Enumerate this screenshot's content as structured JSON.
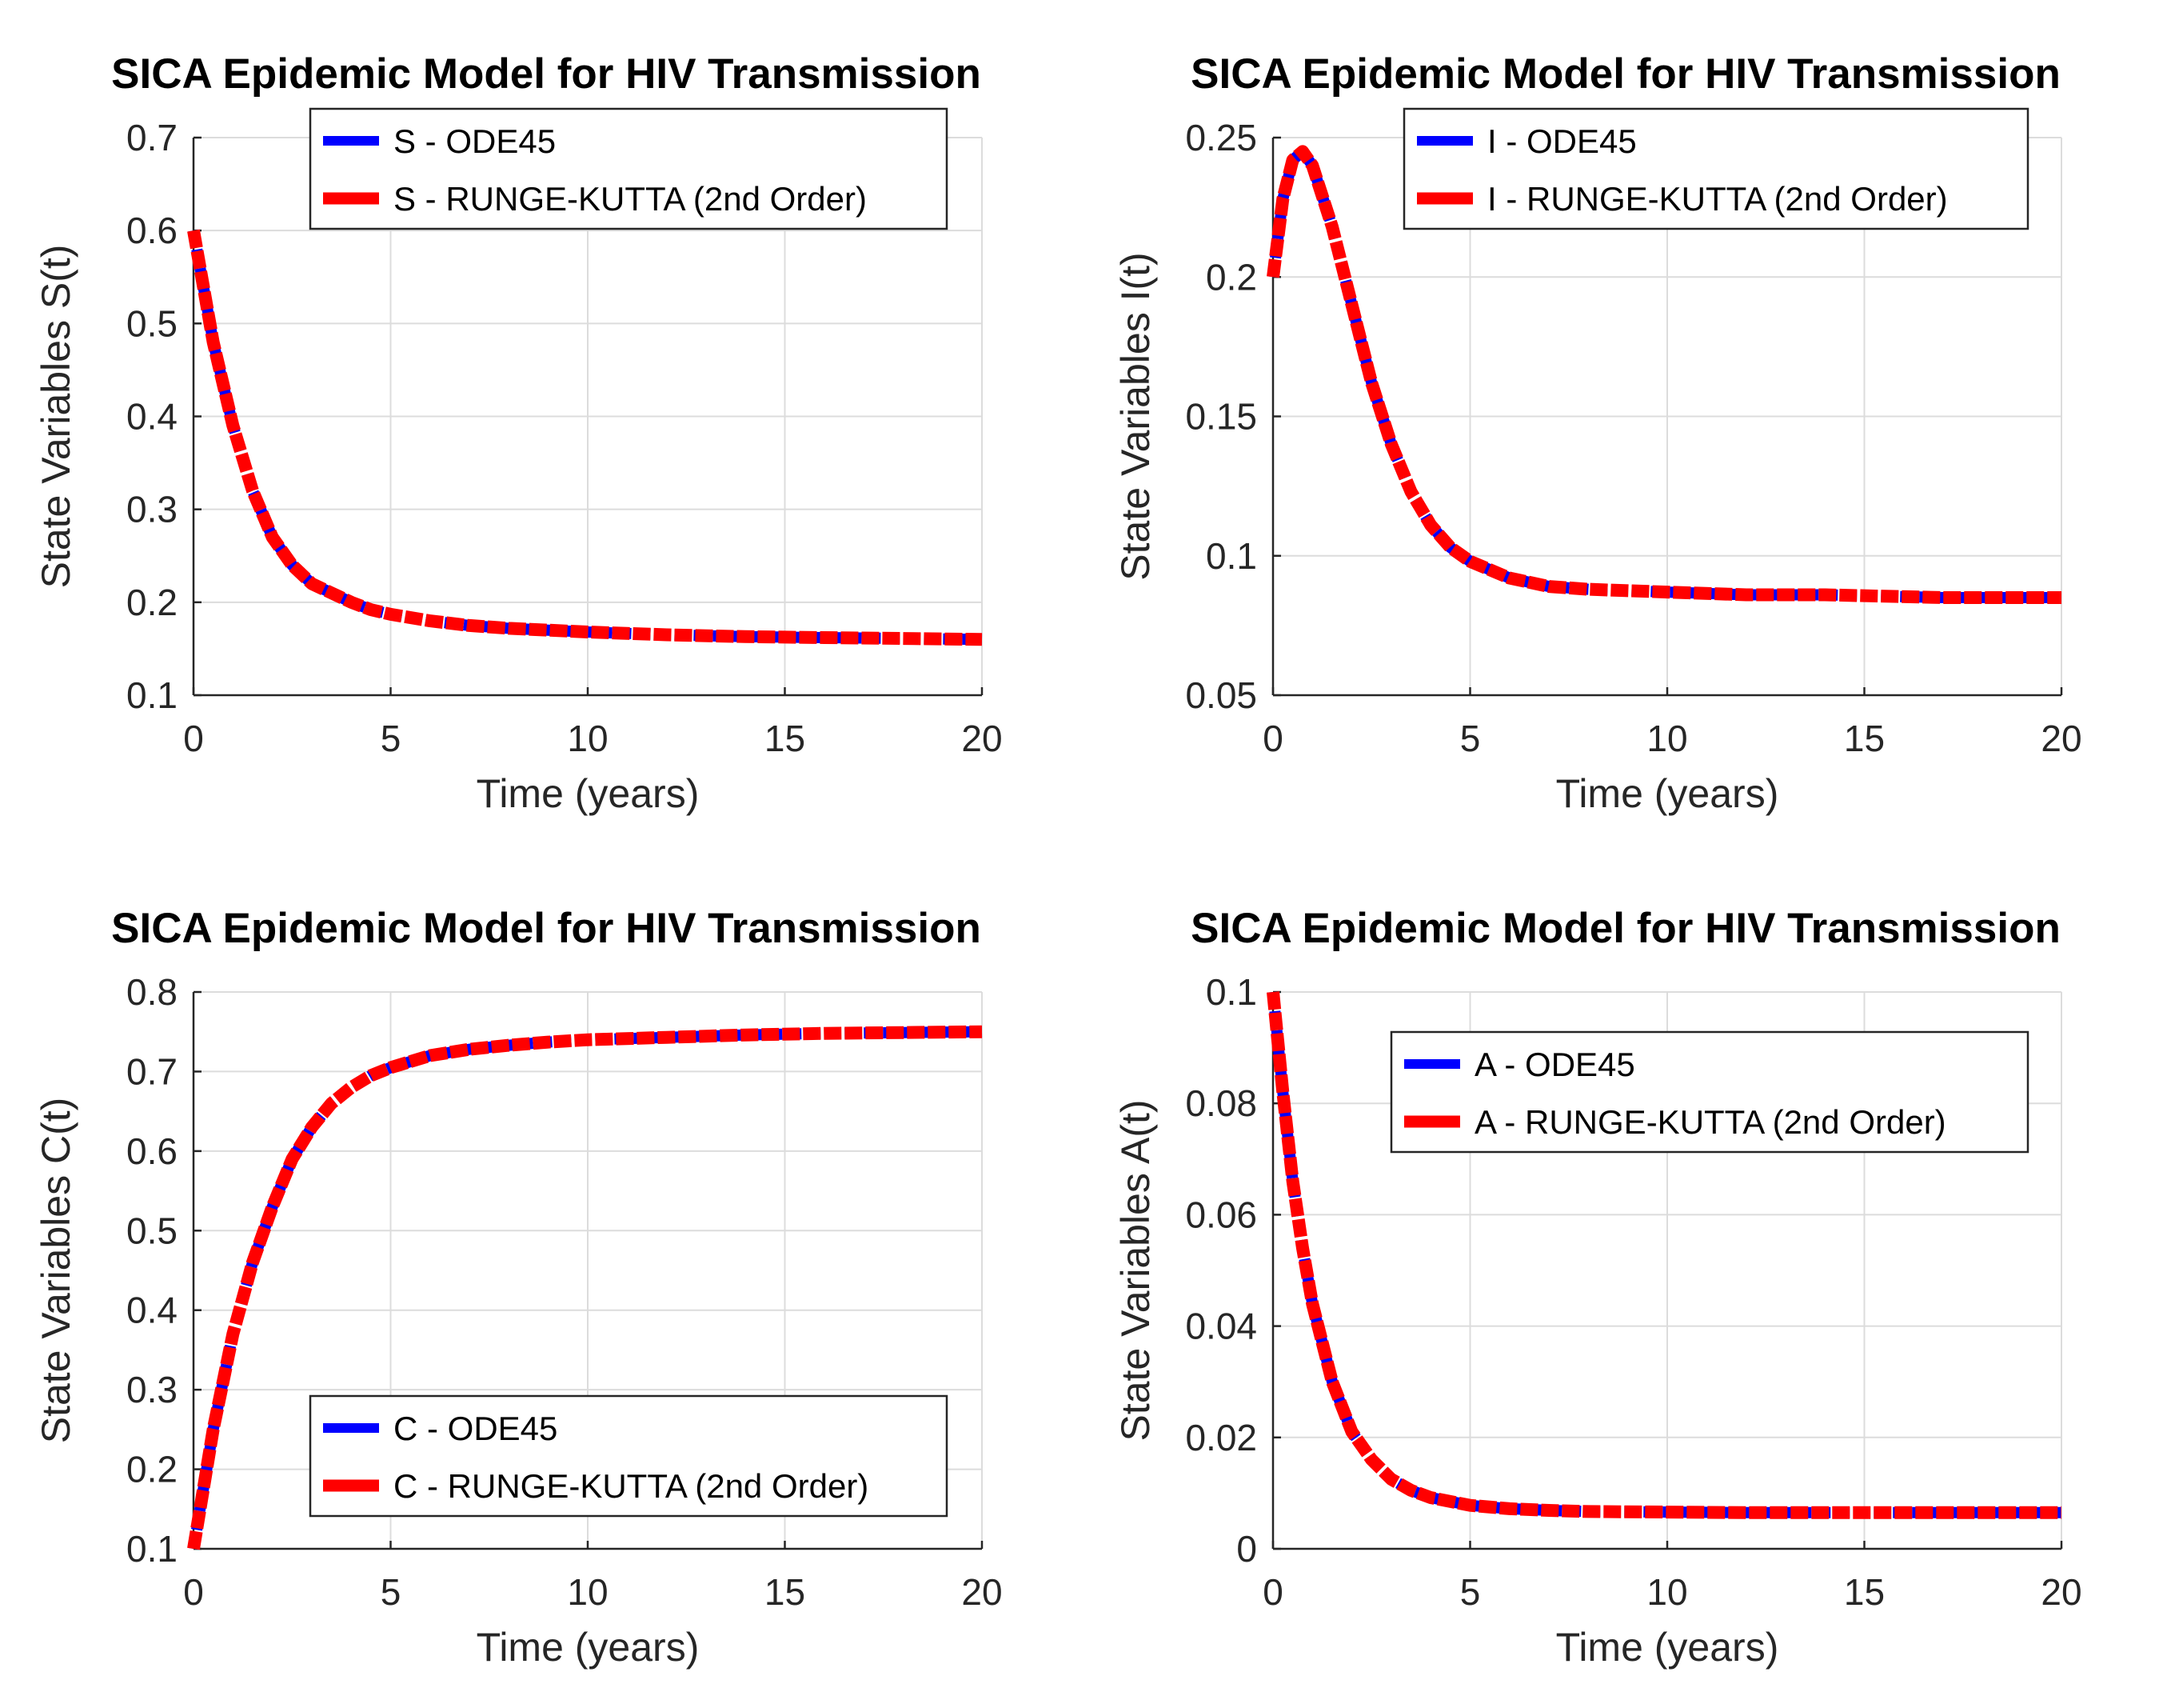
{
  "chart_data": [
    {
      "type": "line",
      "title": "SICA Epidemic Model for HIV Transmission",
      "xlabel": "Time (years)",
      "ylabel": "State Variables S(t)",
      "xlim": [
        0,
        20
      ],
      "ylim": [
        0.1,
        0.7
      ],
      "xticks": [
        0,
        5,
        10,
        15,
        20
      ],
      "xtick_labels": [
        "0",
        "5",
        "10",
        "15",
        "20"
      ],
      "yticks": [
        0.1,
        0.2,
        0.3,
        0.4,
        0.5,
        0.6,
        0.7
      ],
      "ytick_labels": [
        "0.1",
        "0.2",
        "0.3",
        "0.4",
        "0.5",
        "0.6",
        "0.7"
      ],
      "grid": true,
      "legend_position": "top-center",
      "x": [
        0,
        0.5,
        1,
        1.5,
        2,
        2.5,
        3,
        3.5,
        4,
        4.5,
        5,
        6,
        7,
        8,
        9,
        10,
        12,
        14,
        16,
        18,
        20
      ],
      "series": [
        {
          "name": "S - ODE45",
          "color": "#0000ff",
          "values": [
            0.6,
            0.48,
            0.39,
            0.32,
            0.27,
            0.24,
            0.22,
            0.21,
            0.2,
            0.192,
            0.187,
            0.18,
            0.175,
            0.172,
            0.17,
            0.168,
            0.165,
            0.163,
            0.162,
            0.161,
            0.16
          ]
        },
        {
          "name": "S - RUNGE-KUTTA (2nd Order)",
          "color": "#ff0000",
          "values": [
            0.6,
            0.48,
            0.39,
            0.32,
            0.27,
            0.24,
            0.22,
            0.21,
            0.2,
            0.192,
            0.187,
            0.18,
            0.175,
            0.172,
            0.17,
            0.168,
            0.165,
            0.163,
            0.162,
            0.161,
            0.16
          ]
        }
      ]
    },
    {
      "type": "line",
      "title": "SICA Epidemic Model for HIV Transmission",
      "xlabel": "Time (years)",
      "ylabel": "State Variables I(t)",
      "xlim": [
        0,
        20
      ],
      "ylim": [
        0.05,
        0.25
      ],
      "xticks": [
        0,
        5,
        10,
        15,
        20
      ],
      "xtick_labels": [
        "0",
        "5",
        "10",
        "15",
        "20"
      ],
      "yticks": [
        0.05,
        0.1,
        0.15,
        0.2,
        0.25
      ],
      "ytick_labels": [
        "0.05",
        "0.1",
        "0.15",
        "0.2",
        "0.25"
      ],
      "grid": true,
      "legend_position": "top-center",
      "x": [
        0,
        0.25,
        0.5,
        0.75,
        1,
        1.5,
        2,
        2.5,
        3,
        3.5,
        4,
        4.5,
        5,
        6,
        7,
        8,
        10,
        12,
        14,
        17,
        20
      ],
      "series": [
        {
          "name": "I - ODE45",
          "color": "#0000ff",
          "values": [
            0.2,
            0.228,
            0.242,
            0.245,
            0.24,
            0.218,
            0.19,
            0.162,
            0.14,
            0.123,
            0.111,
            0.103,
            0.098,
            0.092,
            0.089,
            0.088,
            0.087,
            0.086,
            0.086,
            0.085,
            0.085
          ]
        },
        {
          "name": "I - RUNGE-KUTTA (2nd Order)",
          "color": "#ff0000",
          "values": [
            0.2,
            0.228,
            0.242,
            0.245,
            0.24,
            0.218,
            0.19,
            0.162,
            0.14,
            0.123,
            0.111,
            0.103,
            0.098,
            0.092,
            0.089,
            0.088,
            0.087,
            0.086,
            0.086,
            0.085,
            0.085
          ]
        }
      ]
    },
    {
      "type": "line",
      "title": "SICA Epidemic Model for HIV Transmission",
      "xlabel": "Time (years)",
      "ylabel": "State Variables C(t)",
      "xlim": [
        0,
        20
      ],
      "ylim": [
        0.1,
        0.8
      ],
      "xticks": [
        0,
        5,
        10,
        15,
        20
      ],
      "xtick_labels": [
        "0",
        "5",
        "10",
        "15",
        "20"
      ],
      "yticks": [
        0.1,
        0.2,
        0.3,
        0.4,
        0.5,
        0.6,
        0.7,
        0.8
      ],
      "ytick_labels": [
        "0.1",
        "0.2",
        "0.3",
        "0.4",
        "0.5",
        "0.6",
        "0.7",
        "0.8"
      ],
      "grid": true,
      "legend_position": "bottom-center",
      "x": [
        0,
        0.5,
        1,
        1.5,
        2,
        2.5,
        3,
        3.5,
        4,
        4.5,
        5,
        6,
        7,
        8,
        9,
        10,
        12,
        14,
        16,
        18,
        20
      ],
      "series": [
        {
          "name": "C - ODE45",
          "color": "#0000ff",
          "values": [
            0.1,
            0.25,
            0.37,
            0.46,
            0.53,
            0.59,
            0.63,
            0.66,
            0.68,
            0.695,
            0.705,
            0.72,
            0.728,
            0.733,
            0.737,
            0.74,
            0.743,
            0.746,
            0.748,
            0.749,
            0.75
          ]
        },
        {
          "name": "C - RUNGE-KUTTA (2nd Order)",
          "color": "#ff0000",
          "values": [
            0.1,
            0.25,
            0.37,
            0.46,
            0.53,
            0.59,
            0.63,
            0.66,
            0.68,
            0.695,
            0.705,
            0.72,
            0.728,
            0.733,
            0.737,
            0.74,
            0.743,
            0.746,
            0.748,
            0.749,
            0.75
          ]
        }
      ]
    },
    {
      "type": "line",
      "title": "SICA Epidemic Model for HIV Transmission",
      "xlabel": "Time (years)",
      "ylabel": "State Variables A(t)",
      "xlim": [
        0,
        20
      ],
      "ylim": [
        0,
        0.1
      ],
      "xticks": [
        0,
        5,
        10,
        15,
        20
      ],
      "xtick_labels": [
        "0",
        "5",
        "10",
        "15",
        "20"
      ],
      "yticks": [
        0,
        0.02,
        0.04,
        0.06,
        0.08,
        0.1
      ],
      "ytick_labels": [
        "0",
        "0.02",
        "0.04",
        "0.06",
        "0.08",
        "0.1"
      ],
      "grid": true,
      "legend_position": "upper-right",
      "x": [
        0,
        0.25,
        0.5,
        0.75,
        1,
        1.5,
        2,
        2.5,
        3,
        3.5,
        4,
        5,
        6,
        7,
        8,
        10,
        12,
        14,
        16,
        18,
        20
      ],
      "series": [
        {
          "name": "A - ODE45",
          "color": "#0000ff",
          "values": [
            0.1,
            0.082,
            0.066,
            0.054,
            0.044,
            0.03,
            0.021,
            0.016,
            0.0125,
            0.0105,
            0.0092,
            0.0078,
            0.0072,
            0.0069,
            0.0067,
            0.0066,
            0.0065,
            0.0065,
            0.0065,
            0.0065,
            0.0065
          ]
        },
        {
          "name": "A - RUNGE-KUTTA (2nd Order)",
          "color": "#ff0000",
          "values": [
            0.1,
            0.082,
            0.066,
            0.054,
            0.044,
            0.03,
            0.021,
            0.016,
            0.0125,
            0.0105,
            0.0092,
            0.0078,
            0.0072,
            0.0069,
            0.0067,
            0.0066,
            0.0065,
            0.0065,
            0.0065,
            0.0065,
            0.0065
          ]
        }
      ]
    }
  ]
}
